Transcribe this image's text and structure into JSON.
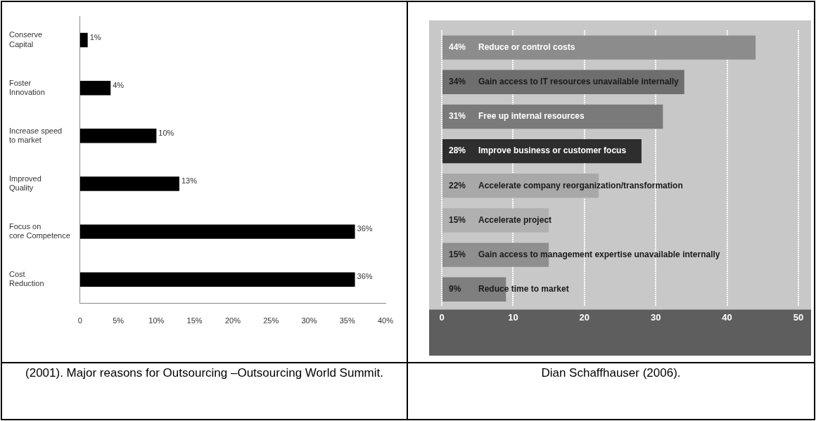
{
  "chart_data": [
    {
      "type": "bar",
      "orientation": "horizontal",
      "categories": [
        "Conserve Capital",
        "Foster Innovation",
        "Increase speed to market",
        "Improved Quality",
        "Focus on core Competence",
        "Cost Reduction"
      ],
      "values": [
        1,
        4,
        10,
        13,
        36,
        36
      ],
      "color": "#000000",
      "value_labels": [
        "1%",
        "4%",
        "10%",
        "13%",
        "36%",
        "36%"
      ],
      "xlim": [
        0,
        40
      ],
      "xticks": [
        0,
        {
          "value": 5,
          "label": "5%"
        },
        {
          "value": 10,
          "label": "10%"
        },
        {
          "value": 15,
          "label": "15%"
        },
        {
          "value": 20,
          "label": "20%"
        },
        {
          "value": 25,
          "label": "25%"
        },
        {
          "value": 30,
          "label": "30%"
        },
        {
          "value": 35,
          "label": "35%"
        },
        {
          "value": 40,
          "label": "40%"
        }
      ],
      "grid": false,
      "legend": false,
      "annotations": [
        "(2001). Major reasons for Outsourcing –Outsourcing World Summit."
      ]
    },
    {
      "type": "bar",
      "orientation": "horizontal",
      "categories": [
        "Reduce or control costs",
        "Gain access to IT resources unavailable internally",
        "Free up internal resources",
        "Improve business or customer focus",
        "Accelerate company reorganization/transformation",
        "Accelerate project",
        "Gain access to management expertise unavailable internally",
        "Reduce time to market"
      ],
      "values": [
        44,
        34,
        31,
        28,
        22,
        15,
        15,
        9
      ],
      "colors": [
        "#8c8c8c",
        "#6e6e6e",
        "#7a7a7a",
        "#2e2e2e",
        "#a8a8a8",
        "#b0b0b0",
        "#8f8f8f",
        "#7f7f7f"
      ],
      "value_labels": [
        "44%",
        "34%",
        "31%",
        "28%",
        "22%",
        "15%",
        "15%",
        "9%"
      ],
      "xlim": [
        0,
        50
      ],
      "xticks": [
        0,
        10,
        20,
        30,
        40,
        50
      ],
      "grid": "x",
      "legend": false,
      "tick_labels": "x",
      "annotations": [
        "Dian Schaffhauser (2006)."
      ]
    }
  ]
}
